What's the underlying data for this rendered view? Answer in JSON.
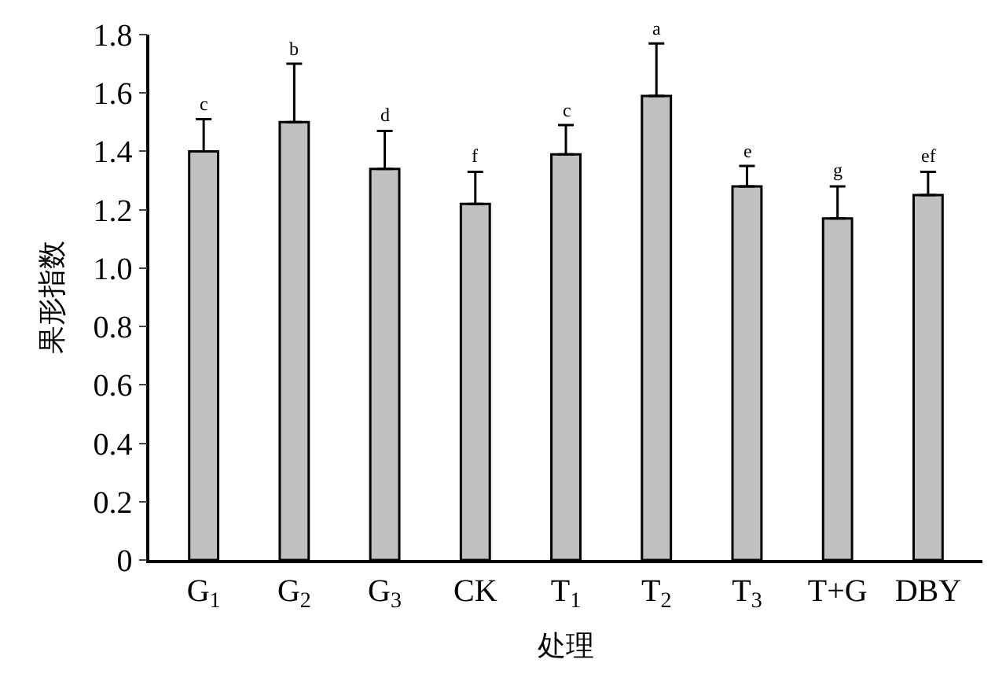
{
  "chart_data": {
    "type": "bar",
    "xlabel": "处理",
    "ylabel": "果形指数",
    "categories": [
      "G$_{1}$",
      "G$_{2}$",
      "G$_{3}$",
      "CK",
      "T$_{1}$",
      "T$_{2}$",
      "T$_{3}$",
      "T+G",
      "DBY"
    ],
    "values": [
      1.4,
      1.5,
      1.34,
      1.22,
      1.39,
      1.59,
      1.28,
      1.17,
      1.25
    ],
    "errors": [
      [
        1.4,
        1.51
      ],
      [
        1.5,
        1.7
      ],
      [
        1.34,
        1.47
      ],
      [
        1.22,
        1.33
      ],
      [
        1.39,
        1.49
      ],
      [
        1.59,
        1.77
      ],
      [
        1.28,
        1.35
      ],
      [
        1.17,
        1.28
      ],
      [
        1.25,
        1.33
      ]
    ],
    "color": "#c0c0c0",
    "ylim": [
      0,
      1.8
    ],
    "yticks": [
      0,
      0.2,
      0.4,
      0.6,
      0.8,
      {
        "value": 1,
        "label": "1.0"
      },
      1.2,
      1.4,
      1.6,
      1.8
    ],
    "annotations": [
      {
        "text": "c",
        "x": "G$_{1}$",
        "y": 1.51
      },
      {
        "text": "b",
        "x": "G$_{2}$",
        "y": 1.7
      },
      {
        "text": "d",
        "x": "G$_{3}$",
        "y": 1.47
      },
      {
        "text": "f",
        "x": "CK",
        "y": 1.33
      },
      {
        "text": "c",
        "x": "T$_{1}$",
        "y": 1.49
      },
      {
        "text": "a",
        "x": "T$_{2}$",
        "y": 1.77
      },
      {
        "text": "e",
        "x": "T$_{3}$",
        "y": 1.35
      },
      {
        "text": "g",
        "x": "T+G",
        "y": 1.28
      },
      {
        "text": "ef",
        "x": "DBY",
        "y": 1.33
      }
    ]
  }
}
